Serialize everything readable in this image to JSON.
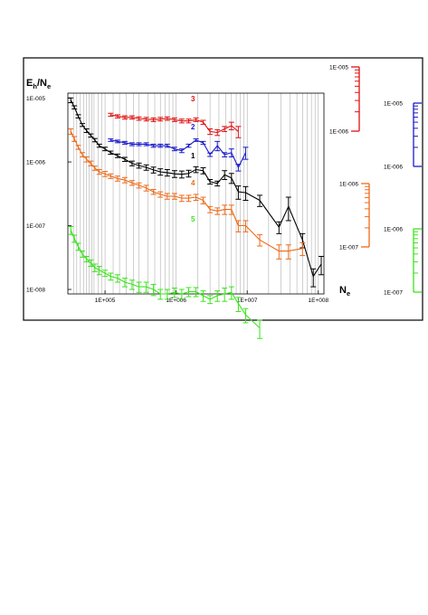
{
  "chart_data": {
    "type": "line",
    "title": "",
    "ylabel": {
      "main": "E",
      "sub1": "h",
      "slash": "/N",
      "sub2": "e"
    },
    "xlabel": {
      "main": "N",
      "sub": "e"
    },
    "x_scale": "log",
    "y_scale": "log",
    "xlim": [
      30000,
      120000000
    ],
    "ylim": [
      8.5e-09,
      1.2e-05
    ],
    "grid_vertical": true,
    "x_ticks": [
      {
        "v": 100000,
        "label": "1E+005"
      },
      {
        "v": 1000000,
        "label": "1E+006"
      },
      {
        "v": 10000000,
        "label": "1E+007"
      },
      {
        "v": 100000000,
        "label": "1E+008"
      }
    ],
    "y_ticks": [
      {
        "v": 1e-05,
        "label": "1E-005"
      },
      {
        "v": 1e-06,
        "label": "1E-006"
      },
      {
        "v": 1e-07,
        "label": "1E-007"
      },
      {
        "v": 1e-08,
        "label": "1E-008"
      }
    ],
    "grid_x": [
      36000,
      40000,
      45000,
      50000,
      55000,
      60000,
      65000,
      70000,
      80000,
      90000,
      100000,
      130000,
      160000,
      200000,
      250000,
      300000,
      400000,
      500000,
      600000,
      700000,
      800000,
      900000,
      1000000,
      2000000,
      3000000,
      4000000,
      5000000,
      6000000,
      7000000,
      8000000,
      9000000,
      10000000,
      20000000,
      30000000,
      40000000,
      50000000,
      60000000,
      70000000,
      80000000,
      90000000,
      100000000
    ],
    "series": [
      {
        "name": "1",
        "color": "#000000",
        "axis": "main",
        "points": [
          [
            33000,
            9.3e-06,
            8e-07
          ],
          [
            37000,
            7.2e-06,
            4e-07
          ],
          [
            42000,
            5.2e-06,
            3e-07
          ],
          [
            48000,
            3.8e-06,
            2e-07
          ],
          [
            55000,
            3.1e-06,
            2e-07
          ],
          [
            63000,
            2.6e-06,
            1.5e-07
          ],
          [
            72000,
            2.2e-06,
            1.3e-07
          ],
          [
            83000,
            1.8e-06,
            1e-07
          ],
          [
            100000,
            1.6e-06,
            1e-07
          ],
          [
            120000,
            1.4e-06,
            8e-08
          ],
          [
            150000,
            1.25e-06,
            8e-08
          ],
          [
            190000,
            1.1e-06,
            8e-08
          ],
          [
            240000,
            9.5e-07,
            8e-08
          ],
          [
            300000,
            8.8e-07,
            8e-08
          ],
          [
            380000,
            8.2e-07,
            8e-08
          ],
          [
            480000,
            7.5e-07,
            8e-08
          ],
          [
            600000,
            7e-07,
            8e-08
          ],
          [
            750000,
            6.8e-07,
            8e-08
          ],
          [
            950000,
            6.5e-07,
            8e-08
          ],
          [
            1200000,
            6.4e-07,
            8e-08
          ],
          [
            1500000,
            6.6e-07,
            8e-08
          ],
          [
            1900000,
            7.6e-07,
            8e-08
          ],
          [
            2400000,
            7.3e-07,
            8e-08
          ],
          [
            3000000,
            4.9e-07,
            4e-08
          ],
          [
            3800000,
            4.6e-07,
            4e-08
          ],
          [
            4800000,
            6.3e-07,
            1e-07
          ],
          [
            6000000,
            5.6e-07,
            1e-07
          ],
          [
            7500000,
            3.4e-07,
            8e-08
          ],
          [
            9500000,
            3.3e-07,
            8e-08
          ],
          [
            15000000,
            2.5e-07,
            5e-08
          ],
          [
            28000000,
            9.5e-08,
            2e-08
          ],
          [
            38000000,
            2e-07,
            8e-08
          ],
          [
            60000000,
            6e-08,
            1.5e-08
          ],
          [
            85000000,
            1.6e-08,
            5e-09
          ],
          [
            110000000,
            2.5e-08,
            8e-09
          ]
        ]
      },
      {
        "name": "2",
        "color": "#1a1acc",
        "axis": "blue",
        "points": [
          [
            120000,
            2.2e-06,
            1e-07
          ],
          [
            150000,
            2.1e-06,
            1e-07
          ],
          [
            190000,
            2e-06,
            1e-07
          ],
          [
            240000,
            1.9e-06,
            1e-07
          ],
          [
            300000,
            1.9e-06,
            1e-07
          ],
          [
            380000,
            1.9e-06,
            1e-07
          ],
          [
            480000,
            1.8e-06,
            1e-07
          ],
          [
            600000,
            1.8e-06,
            1e-07
          ],
          [
            750000,
            1.8e-06,
            1e-07
          ],
          [
            950000,
            1.6e-06,
            1e-07
          ],
          [
            1200000,
            1.5e-06,
            1e-07
          ],
          [
            1500000,
            1.8e-06,
            1e-07
          ],
          [
            1900000,
            2.2e-06,
            1e-07
          ],
          [
            2400000,
            2e-06,
            1e-07
          ],
          [
            3000000,
            1.3e-06,
            8e-08
          ],
          [
            3800000,
            1.8e-06,
            3e-07
          ],
          [
            4800000,
            1.3e-06,
            1e-07
          ],
          [
            6000000,
            1.4e-06,
            2e-07
          ],
          [
            7500000,
            8.2e-07,
            1e-07
          ],
          [
            9500000,
            1.4e-06,
            3e-07
          ]
        ]
      },
      {
        "name": "3",
        "color": "#e01010",
        "axis": "red",
        "points": [
          [
            120000,
            5.5e-06,
            3e-07
          ],
          [
            150000,
            5.2e-06,
            3e-07
          ],
          [
            190000,
            5e-06,
            3e-07
          ],
          [
            240000,
            5e-06,
            3e-07
          ],
          [
            300000,
            4.8e-06,
            3e-07
          ],
          [
            380000,
            4.7e-06,
            3e-07
          ],
          [
            480000,
            4.6e-06,
            3e-07
          ],
          [
            600000,
            4.7e-06,
            3e-07
          ],
          [
            750000,
            4.8e-06,
            3e-07
          ],
          [
            950000,
            4.6e-06,
            3e-07
          ],
          [
            1200000,
            4.4e-06,
            3e-07
          ],
          [
            1500000,
            4.4e-06,
            3e-07
          ],
          [
            1900000,
            4.6e-06,
            3e-07
          ],
          [
            2400000,
            4.2e-06,
            3e-07
          ],
          [
            3000000,
            3e-06,
            3e-07
          ],
          [
            3800000,
            2.9e-06,
            3e-07
          ],
          [
            4800000,
            3.3e-06,
            3e-07
          ],
          [
            6000000,
            3.7e-06,
            5e-07
          ],
          [
            7500000,
            3e-06,
            6e-07
          ]
        ]
      },
      {
        "name": "4",
        "color": "#ef6a18",
        "axis": "orange",
        "points": [
          [
            33000,
            3e-06,
            3e-07
          ],
          [
            37000,
            2.3e-06,
            2e-07
          ],
          [
            42000,
            1.7e-06,
            1.2e-07
          ],
          [
            48000,
            1.3e-06,
            1e-07
          ],
          [
            55000,
            1.1e-06,
            1e-07
          ],
          [
            63000,
            9.5e-07,
            8e-08
          ],
          [
            72000,
            8e-07,
            6e-08
          ],
          [
            83000,
            7e-07,
            6e-08
          ],
          [
            100000,
            6.5e-07,
            6e-08
          ],
          [
            120000,
            6e-07,
            5e-08
          ],
          [
            150000,
            5.5e-07,
            5e-08
          ],
          [
            190000,
            5.2e-07,
            5e-08
          ],
          [
            240000,
            4.7e-07,
            4e-08
          ],
          [
            300000,
            4.3e-07,
            4e-08
          ],
          [
            380000,
            3.9e-07,
            4e-08
          ],
          [
            480000,
            3.4e-07,
            3e-08
          ],
          [
            600000,
            3.1e-07,
            3e-08
          ],
          [
            750000,
            2.9e-07,
            3e-08
          ],
          [
            950000,
            2.9e-07,
            3e-08
          ],
          [
            1200000,
            2.7e-07,
            3e-08
          ],
          [
            1500000,
            2.7e-07,
            3e-08
          ],
          [
            1900000,
            2.8e-07,
            3e-08
          ],
          [
            2400000,
            2.5e-07,
            3e-08
          ],
          [
            3000000,
            1.8e-07,
            2e-08
          ],
          [
            3800000,
            1.7e-07,
            2e-08
          ],
          [
            4800000,
            1.8e-07,
            3e-08
          ],
          [
            6000000,
            1.8e-07,
            3e-08
          ],
          [
            7500000,
            1e-07,
            2e-08
          ],
          [
            9500000,
            1e-07,
            2e-08
          ],
          [
            15000000,
            6e-08,
            1.2e-08
          ],
          [
            28000000,
            4e-08,
            1e-08
          ],
          [
            38000000,
            4e-08,
            1e-08
          ],
          [
            60000000,
            4.4e-08,
            1e-08
          ]
        ]
      },
      {
        "name": "5",
        "color": "#3ae41a",
        "axis": "green",
        "points": [
          [
            33000,
            8.5e-08,
            1.2e-08
          ],
          [
            37000,
            6.3e-08,
            8e-09
          ],
          [
            42000,
            4.7e-08,
            6e-09
          ],
          [
            48000,
            3.6e-08,
            4e-09
          ],
          [
            55000,
            3e-08,
            3e-09
          ],
          [
            63000,
            2.6e-08,
            3e-09
          ],
          [
            72000,
            2.2e-08,
            3e-09
          ],
          [
            83000,
            2e-08,
            3e-09
          ],
          [
            100000,
            1.8e-08,
            2e-09
          ],
          [
            120000,
            1.6e-08,
            2e-09
          ],
          [
            150000,
            1.5e-08,
            2e-09
          ],
          [
            190000,
            1.3e-08,
            2e-09
          ],
          [
            240000,
            1.2e-08,
            2e-09
          ],
          [
            300000,
            1.1e-08,
            2e-09
          ],
          [
            380000,
            1.1e-08,
            2e-09
          ],
          [
            480000,
            1e-08,
            2e-09
          ],
          [
            600000,
            8.5e-09,
            1.5e-09
          ],
          [
            750000,
            8.5e-09,
            1.5e-09
          ],
          [
            950000,
            9e-09,
            1.5e-09
          ],
          [
            1200000,
            8.5e-09,
            1.5e-09
          ],
          [
            1500000,
            9.2e-09,
            1.5e-09
          ],
          [
            1900000,
            9.2e-09,
            1.5e-09
          ],
          [
            2400000,
            8e-09,
            1.5e-09
          ],
          [
            3000000,
            7e-09,
            1e-09
          ],
          [
            3800000,
            8e-09,
            1.5e-09
          ],
          [
            4800000,
            8.5e-09,
            2e-09
          ],
          [
            6000000,
            9e-09,
            2e-09
          ],
          [
            7500000,
            6e-09,
            1.5e-09
          ],
          [
            9500000,
            4e-09,
            1e-09
          ],
          [
            15000000,
            2.5e-09,
            8e-10
          ]
        ]
      }
    ],
    "right_axes": [
      {
        "id": "red",
        "color": "#e01010",
        "labels": [
          "1E-005",
          "1E-006"
        ]
      },
      {
        "id": "blue",
        "color": "#1a1acc",
        "labels": [
          "1E-005",
          "1E-006"
        ]
      },
      {
        "id": "orange",
        "color": "#ef6a18",
        "labels": [
          "1E-006",
          "1E-007"
        ]
      },
      {
        "id": "green",
        "color": "#3ae41a",
        "labels": [
          "1E-006",
          "1E-007"
        ]
      }
    ]
  }
}
